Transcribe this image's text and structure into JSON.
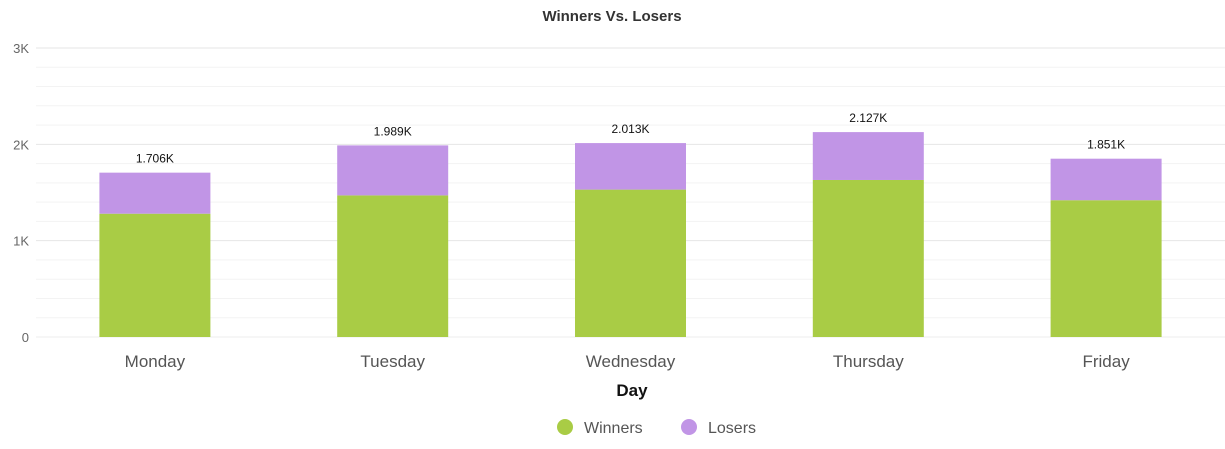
{
  "chart_data": {
    "type": "bar",
    "stacked": true,
    "title": "Winners Vs. Losers",
    "xlabel": "Day",
    "ylabel": "",
    "ylim": [
      0,
      3000
    ],
    "yticks": [
      0,
      1000,
      2000,
      3000
    ],
    "ytick_labels": [
      "0",
      "1K",
      "2K",
      "3K"
    ],
    "grid": true,
    "legend_position": "bottom-center",
    "categories": [
      "Monday",
      "Tuesday",
      "Wednesday",
      "Thursday",
      "Friday"
    ],
    "series": [
      {
        "name": "Winners",
        "color": "#a9cc45",
        "values": [
          1280,
          1470,
          1530,
          1630,
          1420
        ]
      },
      {
        "name": "Losers",
        "color": "#c195e6",
        "values": [
          426,
          519,
          483,
          497,
          431
        ]
      }
    ],
    "totals": [
      1706,
      1989,
      2013,
      2127,
      1851
    ],
    "total_labels": [
      "1.706K",
      "1.989K",
      "2.013K",
      "2.127K",
      "1.851K"
    ]
  }
}
